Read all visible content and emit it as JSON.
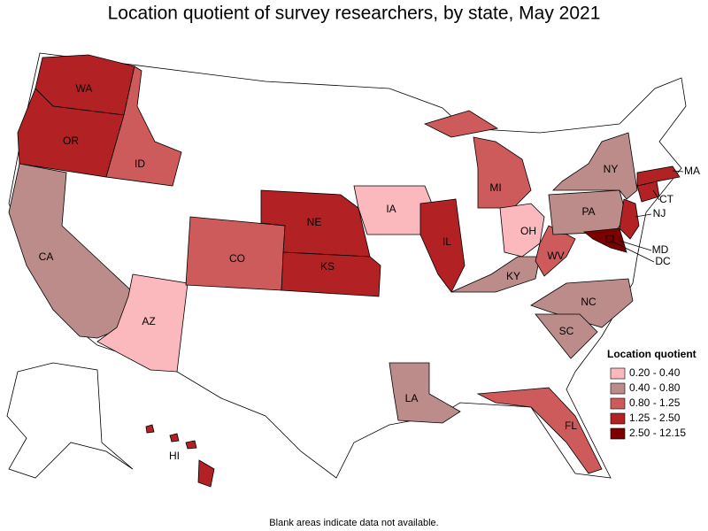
{
  "title": "Location quotient of survey researchers, by state, May 2021",
  "legend": {
    "title": "Location quotient",
    "classes": [
      {
        "label": "0.20 - 0.40",
        "color": "#fbb9bd"
      },
      {
        "label": "0.40 - 0.80",
        "color": "#bc8c8b"
      },
      {
        "label": "0.80 - 1.25",
        "color": "#cd5b5b"
      },
      {
        "label": "1.25 - 2.50",
        "color": "#b22124"
      },
      {
        "label": "2.50 - 12.15",
        "color": "#7b0000"
      }
    ]
  },
  "states": [
    {
      "abbr": "WA",
      "class": 3
    },
    {
      "abbr": "OR",
      "class": 3
    },
    {
      "abbr": "ID",
      "class": 2
    },
    {
      "abbr": "CA",
      "class": 1
    },
    {
      "abbr": "AZ",
      "class": 0
    },
    {
      "abbr": "CO",
      "class": 2
    },
    {
      "abbr": "NE",
      "class": 3
    },
    {
      "abbr": "KS",
      "class": 3
    },
    {
      "abbr": "IA",
      "class": 0
    },
    {
      "abbr": "IL",
      "class": 3
    },
    {
      "abbr": "MI",
      "class": 2
    },
    {
      "abbr": "OH",
      "class": 0
    },
    {
      "abbr": "KY",
      "class": 1
    },
    {
      "abbr": "WV",
      "class": 2
    },
    {
      "abbr": "PA",
      "class": 1
    },
    {
      "abbr": "NY",
      "class": 1
    },
    {
      "abbr": "NJ",
      "class": 3
    },
    {
      "abbr": "CT",
      "class": 3
    },
    {
      "abbr": "MA",
      "class": 3
    },
    {
      "abbr": "MD",
      "class": 4
    },
    {
      "abbr": "DC",
      "class": 4
    },
    {
      "abbr": "NC",
      "class": 1
    },
    {
      "abbr": "SC",
      "class": 1
    },
    {
      "abbr": "LA",
      "class": 1
    },
    {
      "abbr": "FL",
      "class": 2
    },
    {
      "abbr": "HI",
      "class": 3
    }
  ],
  "note": "Blank areas indicate data not available."
}
